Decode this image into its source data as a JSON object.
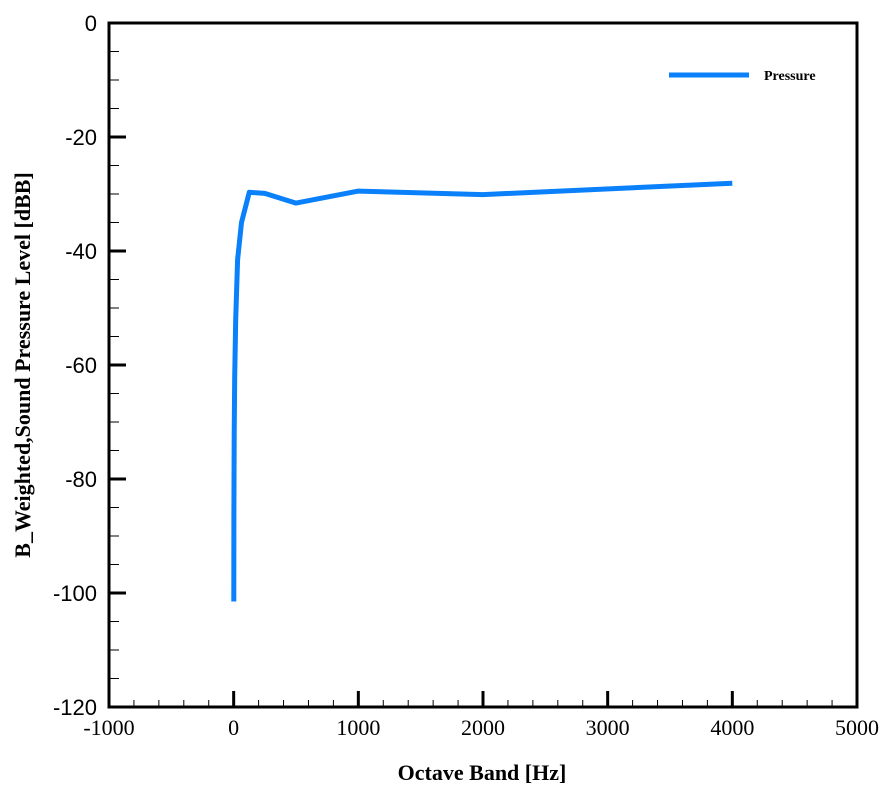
{
  "chart_data": {
    "type": "line",
    "title": "",
    "xlabel": "Octave Band [Hz]",
    "ylabel": "B_Weighted,Sound Pressure Level [dBB]",
    "xlim": [
      -1000,
      5000
    ],
    "ylim": [
      -120,
      0
    ],
    "x_ticks": [
      -1000,
      0,
      1000,
      2000,
      3000,
      4000,
      5000
    ],
    "x_tick_labels": [
      "-1000",
      "0",
      "1000",
      "2000",
      "3000",
      "4000",
      "5000"
    ],
    "x_minor_step": 200,
    "y_ticks": [
      0,
      -20,
      -40,
      -60,
      -80,
      -100,
      -120
    ],
    "y_tick_labels": [
      "0",
      "-20",
      "-40",
      "-60",
      "-80",
      "-100",
      "-120"
    ],
    "y_minor_step": 5,
    "grid": false,
    "legend_position": "upper right",
    "series": [
      {
        "name": "Pressure",
        "color": "#0A80FA",
        "x": [
          1,
          2,
          4,
          8,
          16,
          31.5,
          63,
          125,
          250,
          500,
          1000,
          2000,
          4000
        ],
        "values": [
          -101.5,
          -86,
          -72,
          -62,
          -52,
          -41.5,
          -35,
          -29.7,
          -29.9,
          -31.6,
          -29.5,
          -30.1,
          -28.1
        ]
      }
    ]
  },
  "legend": {
    "items": [
      {
        "label": "Pressure",
        "color": "#0A80FA"
      }
    ]
  }
}
